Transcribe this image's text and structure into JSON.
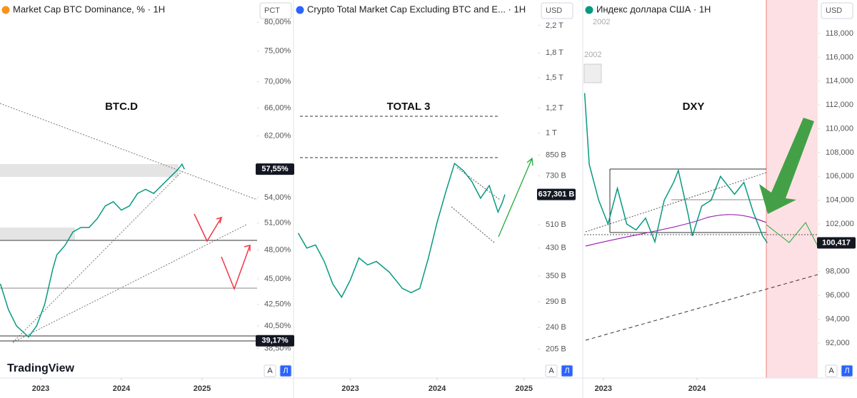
{
  "chart_data": [
    {
      "type": "line",
      "title": "Market Cap BTC Dominance, % · 1H",
      "unit": "PCT",
      "label": "BTC.D",
      "color": "#089981",
      "log_scale": true,
      "x": [
        2022.5,
        2022.6,
        2022.7,
        2022.85,
        2022.95,
        2023.05,
        2023.15,
        2023.2,
        2023.3,
        2023.4,
        2023.5,
        2023.6,
        2023.7,
        2023.8,
        2023.9,
        2024.0,
        2024.1,
        2024.2,
        2024.3,
        2024.4,
        2024.5,
        2024.6,
        2024.7,
        2024.75,
        2024.78
      ],
      "values": [
        44.5,
        42,
        40.5,
        39.5,
        40.5,
        42.5,
        46,
        47.5,
        48.5,
        50,
        50.5,
        50.5,
        51.5,
        53,
        53.5,
        52.5,
        53,
        54.5,
        55,
        54.5,
        55.5,
        56.5,
        57.5,
        58.2,
        57.55
      ],
      "xlim": [
        2022.496,
        2025.681
      ],
      "xticks": [
        2023,
        2024,
        2025
      ],
      "ylim": [
        37.2,
        84.1
      ],
      "yticks": [
        {
          "value": 80,
          "label": "80,00%"
        },
        {
          "value": 75,
          "label": "75,00%"
        },
        {
          "value": 70,
          "label": "70,00%"
        },
        {
          "value": 66,
          "label": "66,00%"
        },
        {
          "value": 62,
          "label": "62,00%"
        },
        {
          "value": 54,
          "label": "54,00%"
        },
        {
          "value": 51,
          "label": "51,00%"
        },
        {
          "value": 48,
          "label": "48,00%"
        },
        {
          "value": 45,
          "label": "45,00%"
        },
        {
          "value": 42.5,
          "label": "42,50%"
        },
        {
          "value": 40.5,
          "label": "40,50%"
        },
        {
          "value": 38.5,
          "label": "38,50%"
        }
      ],
      "price_labels": [
        {
          "value": 57.55,
          "label": "57,55%"
        },
        {
          "value": 39.17,
          "label": "39,17%"
        }
      ]
    },
    {
      "type": "line",
      "title": "Crypto Total Market Cap Excluding BTC and E... · 1H",
      "unit": "USD",
      "label": "TOTAL 3",
      "color": "#089981",
      "log_scale": true,
      "x": [
        2022.4,
        2022.5,
        2022.6,
        2022.7,
        2022.8,
        2022.9,
        2023.0,
        2023.1,
        2023.2,
        2023.3,
        2023.45,
        2023.6,
        2023.7,
        2023.8,
        2023.9,
        2024.0,
        2024.1,
        2024.2,
        2024.3,
        2024.4,
        2024.5,
        2024.6,
        2024.7,
        2024.75,
        2024.78
      ],
      "values": [
        480,
        430,
        440,
        390,
        330,
        300,
        340,
        400,
        380,
        390,
        360,
        320,
        310,
        320,
        400,
        520,
        650,
        800,
        760,
        700,
        620,
        680,
        560,
        600,
        637.301
      ],
      "xlim": [
        2022.355,
        2025.15
      ],
      "xticks": [
        2023,
        2024,
        2025
      ],
      "ylim": [
        184,
        2654
      ],
      "yticks": [
        {
          "value": 2200,
          "label": "2,2 T"
        },
        {
          "value": 1800,
          "label": "1,8 T"
        },
        {
          "value": 1500,
          "label": "1,5 T"
        },
        {
          "value": 1200,
          "label": "1,2 T"
        },
        {
          "value": 1000,
          "label": "1 T"
        },
        {
          "value": 850,
          "label": "850 B"
        },
        {
          "value": 730,
          "label": "730 B"
        },
        {
          "value": 510,
          "label": "510 B"
        },
        {
          "value": 430,
          "label": "430 B"
        },
        {
          "value": 350,
          "label": "350 B"
        },
        {
          "value": 290,
          "label": "290 B"
        },
        {
          "value": 240,
          "label": "240 B"
        },
        {
          "value": 205,
          "label": "205 B"
        }
      ],
      "price_labels": [
        {
          "value": 637.301,
          "label": "637,301 B"
        }
      ]
    },
    {
      "type": "line",
      "title": "Индекс доллара США · 1H",
      "unit": "USD",
      "label": "DXY",
      "color": "#089981",
      "log_scale": false,
      "x": [
        2022.8,
        2022.85,
        2022.95,
        2023.05,
        2023.15,
        2023.25,
        2023.35,
        2023.45,
        2023.55,
        2023.65,
        2023.75,
        2023.8,
        2023.9,
        2023.95,
        2024.05,
        2024.15,
        2024.25,
        2024.3,
        2024.4,
        2024.5,
        2024.6,
        2024.7,
        2024.75
      ],
      "values": [
        113,
        107,
        104,
        102,
        105,
        102,
        101.5,
        102.5,
        100.5,
        104,
        105.5,
        106.5,
        103,
        101,
        103.5,
        104,
        106,
        105.5,
        104.5,
        105.5,
        103,
        101,
        100.417
      ],
      "xlim": [
        2022.788,
        2025.288
      ],
      "xticks": [
        2023,
        2024
      ],
      "ylim": [
        90.26,
        120.82
      ],
      "yticks": [
        {
          "value": 118,
          "label": "118,000"
        },
        {
          "value": 116,
          "label": "116,000"
        },
        {
          "value": 114,
          "label": "114,000"
        },
        {
          "value": 112,
          "label": "112,000"
        },
        {
          "value": 110,
          "label": "110,000"
        },
        {
          "value": 108,
          "label": "108,000"
        },
        {
          "value": 106,
          "label": "106,000"
        },
        {
          "value": 104,
          "label": "104,000"
        },
        {
          "value": 102,
          "label": "102,000"
        },
        {
          "value": 98,
          "label": "98,000"
        },
        {
          "value": 96,
          "label": "96,000"
        },
        {
          "value": 94,
          "label": "94,000"
        },
        {
          "value": 92,
          "label": "92,000"
        }
      ],
      "price_labels": [
        {
          "value": 100.417,
          "label": "100,417"
        }
      ]
    }
  ],
  "ui": {
    "logo": "TradingView",
    "buttons": [
      "А",
      "Л"
    ],
    "watermarks": [
      "2002",
      "2002"
    ]
  }
}
